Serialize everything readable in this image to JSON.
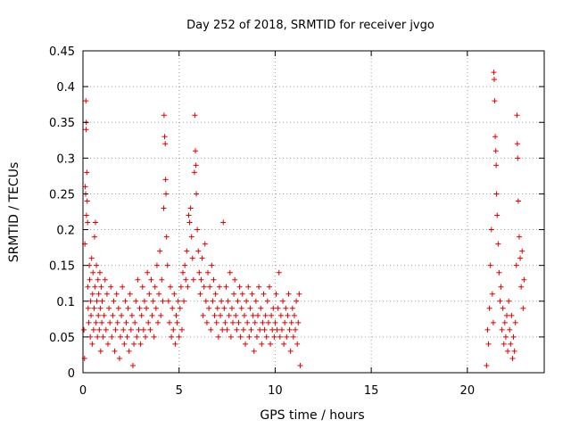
{
  "chart_data": {
    "type": "scatter",
    "title": "Day 252 of 2018, SRMTID for receiver jvgo",
    "xlabel": "GPS time / hours",
    "ylabel": "SRMTID / TECUs",
    "xlim": [
      0,
      24
    ],
    "ylim": [
      0,
      0.45
    ],
    "xticks": [
      0,
      5,
      10,
      15,
      20
    ],
    "yticks": [
      0,
      0.05,
      0.1,
      0.15,
      0.2,
      0.25,
      0.3,
      0.35,
      0.4,
      0.45
    ],
    "ytick_labels": [
      "0",
      "0.05",
      "0.1",
      "0.15",
      "0.2",
      "0.25",
      "0.3",
      "0.35",
      "0.4",
      "0.45"
    ],
    "xtick_labels": [
      "0",
      "5",
      "10",
      "15",
      "20"
    ],
    "grid": true,
    "marker": "+",
    "color": "#e00000",
    "series": [
      {
        "values": [
          [
            0.05,
            0.06
          ],
          [
            0.08,
            0.02
          ],
          [
            0.1,
            0.18
          ],
          [
            0.12,
            0.26
          ],
          [
            0.14,
            0.25
          ],
          [
            0.15,
            0.38
          ],
          [
            0.16,
            0.34
          ],
          [
            0.17,
            0.35
          ],
          [
            0.18,
            0.22
          ],
          [
            0.2,
            0.28
          ],
          [
            0.22,
            0.24
          ],
          [
            0.24,
            0.21
          ],
          [
            0.25,
            0.12
          ],
          [
            0.27,
            0.09
          ],
          [
            0.3,
            0.07
          ],
          [
            0.33,
            0.15
          ],
          [
            0.35,
            0.13
          ],
          [
            0.38,
            0.05
          ],
          [
            0.4,
            0.1
          ],
          [
            0.42,
            0.08
          ],
          [
            0.45,
            0.16
          ],
          [
            0.48,
            0.04
          ],
          [
            0.5,
            0.11
          ],
          [
            0.52,
            0.14
          ],
          [
            0.55,
            0.06
          ],
          [
            0.58,
            0.09
          ],
          [
            0.6,
            0.19
          ],
          [
            0.62,
            0.12
          ],
          [
            0.65,
            0.21
          ],
          [
            0.68,
            0.07
          ],
          [
            0.7,
            0.15
          ],
          [
            0.72,
            0.1
          ],
          [
            0.75,
            0.05
          ],
          [
            0.78,
            0.13
          ],
          [
            0.8,
            0.08
          ],
          [
            0.82,
            0.11
          ],
          [
            0.85,
            0.06
          ],
          [
            0.88,
            0.14
          ],
          [
            0.9,
            0.09
          ],
          [
            0.92,
            0.03
          ],
          [
            0.95,
            0.12
          ],
          [
            0.98,
            0.07
          ],
          [
            1.0,
            0.1
          ],
          [
            1.05,
            0.05
          ],
          [
            1.1,
            0.08
          ],
          [
            1.15,
            0.13
          ],
          [
            1.2,
            0.06
          ],
          [
            1.25,
            0.11
          ],
          [
            1.3,
            0.04
          ],
          [
            1.35,
            0.09
          ],
          [
            1.4,
            0.07
          ],
          [
            1.45,
            0.12
          ],
          [
            1.5,
            0.05
          ],
          [
            1.55,
            0.08
          ],
          [
            1.6,
            0.1
          ],
          [
            1.65,
            0.03
          ],
          [
            1.7,
            0.06
          ],
          [
            1.75,
            0.11
          ],
          [
            1.8,
            0.07
          ],
          [
            1.85,
            0.09
          ],
          [
            1.9,
            0.02
          ],
          [
            1.95,
            0.05
          ],
          [
            2.0,
            0.08
          ],
          [
            2.05,
            0.12
          ],
          [
            2.1,
            0.06
          ],
          [
            2.15,
            0.04
          ],
          [
            2.2,
            0.1
          ],
          [
            2.25,
            0.07
          ],
          [
            2.3,
            0.05
          ],
          [
            2.35,
            0.09
          ],
          [
            2.4,
            0.03
          ],
          [
            2.45,
            0.11
          ],
          [
            2.5,
            0.06
          ],
          [
            2.55,
            0.08
          ],
          [
            2.6,
            0.01
          ],
          [
            2.65,
            0.04
          ],
          [
            2.7,
            0.07
          ],
          [
            2.75,
            0.1
          ],
          [
            2.8,
            0.05
          ],
          [
            2.85,
            0.13
          ],
          [
            2.9,
            0.06
          ],
          [
            2.95,
            0.09
          ],
          [
            3.0,
            0.04
          ],
          [
            3.05,
            0.08
          ],
          [
            3.1,
            0.12
          ],
          [
            3.15,
            0.06
          ],
          [
            3.2,
            0.1
          ],
          [
            3.25,
            0.05
          ],
          [
            3.3,
            0.09
          ],
          [
            3.35,
            0.14
          ],
          [
            3.4,
            0.07
          ],
          [
            3.45,
            0.11
          ],
          [
            3.5,
            0.06
          ],
          [
            3.55,
            0.13
          ],
          [
            3.6,
            0.08
          ],
          [
            3.65,
            0.1
          ],
          [
            3.7,
            0.05
          ],
          [
            3.75,
            0.12
          ],
          [
            3.8,
            0.09
          ],
          [
            3.85,
            0.15
          ],
          [
            3.9,
            0.07
          ],
          [
            3.95,
            0.11
          ],
          [
            4.0,
            0.17
          ],
          [
            4.05,
            0.08
          ],
          [
            4.1,
            0.13
          ],
          [
            4.15,
            0.1
          ],
          [
            4.2,
            0.23
          ],
          [
            4.22,
            0.36
          ],
          [
            4.25,
            0.33
          ],
          [
            4.28,
            0.32
          ],
          [
            4.3,
            0.27
          ],
          [
            4.32,
            0.25
          ],
          [
            4.35,
            0.19
          ],
          [
            4.4,
            0.15
          ],
          [
            4.45,
            0.1
          ],
          [
            4.5,
            0.07
          ],
          [
            4.55,
            0.12
          ],
          [
            4.6,
            0.05
          ],
          [
            4.65,
            0.09
          ],
          [
            4.7,
            0.06
          ],
          [
            4.75,
            0.11
          ],
          [
            4.8,
            0.04
          ],
          [
            4.85,
            0.08
          ],
          [
            4.9,
            0.07
          ],
          [
            4.95,
            0.1
          ],
          [
            5.0,
            0.05
          ],
          [
            5.05,
            0.09
          ],
          [
            5.1,
            0.12
          ],
          [
            5.15,
            0.06
          ],
          [
            5.2,
            0.14
          ],
          [
            5.25,
            0.1
          ],
          [
            5.3,
            0.15
          ],
          [
            5.35,
            0.13
          ],
          [
            5.4,
            0.17
          ],
          [
            5.45,
            0.12
          ],
          [
            5.5,
            0.22
          ],
          [
            5.55,
            0.21
          ],
          [
            5.6,
            0.23
          ],
          [
            5.65,
            0.19
          ],
          [
            5.7,
            0.16
          ],
          [
            5.75,
            0.13
          ],
          [
            5.8,
            0.28
          ],
          [
            5.82,
            0.36
          ],
          [
            5.85,
            0.31
          ],
          [
            5.88,
            0.29
          ],
          [
            5.9,
            0.25
          ],
          [
            5.95,
            0.2
          ],
          [
            6.0,
            0.17
          ],
          [
            6.05,
            0.14
          ],
          [
            6.1,
            0.11
          ],
          [
            6.15,
            0.13
          ],
          [
            6.2,
            0.16
          ],
          [
            6.25,
            0.08
          ],
          [
            6.3,
            0.12
          ],
          [
            6.35,
            0.18
          ],
          [
            6.4,
            0.1
          ],
          [
            6.45,
            0.07
          ],
          [
            6.5,
            0.14
          ],
          [
            6.55,
            0.09
          ],
          [
            6.6,
            0.12
          ],
          [
            6.65,
            0.06
          ],
          [
            6.7,
            0.15
          ],
          [
            6.75,
            0.1
          ],
          [
            6.8,
            0.13
          ],
          [
            6.85,
            0.08
          ],
          [
            6.9,
            0.11
          ],
          [
            6.95,
            0.07
          ],
          [
            7.0,
            0.09
          ],
          [
            7.05,
            0.05
          ],
          [
            7.1,
            0.12
          ],
          [
            7.15,
            0.08
          ],
          [
            7.2,
            0.1
          ],
          [
            7.25,
            0.06
          ],
          [
            7.3,
            0.21
          ],
          [
            7.35,
            0.09
          ],
          [
            7.4,
            0.07
          ],
          [
            7.45,
            0.12
          ],
          [
            7.5,
            0.06
          ],
          [
            7.55,
            0.1
          ],
          [
            7.6,
            0.08
          ],
          [
            7.65,
            0.14
          ],
          [
            7.7,
            0.05
          ],
          [
            7.75,
            0.09
          ],
          [
            7.8,
            0.07
          ],
          [
            7.85,
            0.11
          ],
          [
            7.9,
            0.13
          ],
          [
            7.95,
            0.08
          ],
          [
            8.0,
            0.06
          ],
          [
            8.05,
            0.1
          ],
          [
            8.1,
            0.07
          ],
          [
            8.15,
            0.12
          ],
          [
            8.2,
            0.05
          ],
          [
            8.25,
            0.09
          ],
          [
            8.3,
            0.11
          ],
          [
            8.35,
            0.06
          ],
          [
            8.4,
            0.08
          ],
          [
            8.45,
            0.04
          ],
          [
            8.5,
            0.1
          ],
          [
            8.55,
            0.07
          ],
          [
            8.6,
            0.12
          ],
          [
            8.65,
            0.05
          ],
          [
            8.7,
            0.09
          ],
          [
            8.75,
            0.06
          ],
          [
            8.8,
            0.11
          ],
          [
            8.85,
            0.08
          ],
          [
            8.9,
            0.03
          ],
          [
            8.95,
            0.07
          ],
          [
            9.0,
            0.1
          ],
          [
            9.05,
            0.05
          ],
          [
            9.1,
            0.08
          ],
          [
            9.15,
            0.12
          ],
          [
            9.2,
            0.06
          ],
          [
            9.25,
            0.09
          ],
          [
            9.3,
            0.04
          ],
          [
            9.35,
            0.07
          ],
          [
            9.4,
            0.11
          ],
          [
            9.45,
            0.06
          ],
          [
            9.5,
            0.08
          ],
          [
            9.55,
            0.05
          ],
          [
            9.6,
            0.1
          ],
          [
            9.65,
            0.07
          ],
          [
            9.7,
            0.12
          ],
          [
            9.75,
            0.04
          ],
          [
            9.8,
            0.08
          ],
          [
            9.85,
            0.06
          ],
          [
            9.9,
            0.09
          ],
          [
            9.95,
            0.05
          ],
          [
            10.0,
            0.07
          ],
          [
            10.05,
            0.11
          ],
          [
            10.1,
            0.06
          ],
          [
            10.15,
            0.09
          ],
          [
            10.2,
            0.14
          ],
          [
            10.25,
            0.05
          ],
          [
            10.3,
            0.08
          ],
          [
            10.35,
            0.06
          ],
          [
            10.4,
            0.1
          ],
          [
            10.45,
            0.04
          ],
          [
            10.5,
            0.07
          ],
          [
            10.55,
            0.09
          ],
          [
            10.6,
            0.05
          ],
          [
            10.65,
            0.08
          ],
          [
            10.7,
            0.11
          ],
          [
            10.75,
            0.06
          ],
          [
            10.8,
            0.03
          ],
          [
            10.85,
            0.07
          ],
          [
            10.9,
            0.09
          ],
          [
            10.95,
            0.05
          ],
          [
            11.0,
            0.08
          ],
          [
            11.05,
            0.06
          ],
          [
            11.1,
            0.1
          ],
          [
            11.15,
            0.04
          ],
          [
            11.2,
            0.07
          ],
          [
            11.25,
            0.11
          ],
          [
            11.3,
            0.01
          ],
          [
            21.0,
            0.01
          ],
          [
            21.05,
            0.06
          ],
          [
            21.1,
            0.04
          ],
          [
            21.15,
            0.09
          ],
          [
            21.2,
            0.15
          ],
          [
            21.25,
            0.2
          ],
          [
            21.3,
            0.11
          ],
          [
            21.35,
            0.07
          ],
          [
            21.38,
            0.42
          ],
          [
            21.4,
            0.41
          ],
          [
            21.42,
            0.38
          ],
          [
            21.45,
            0.33
          ],
          [
            21.48,
            0.31
          ],
          [
            21.5,
            0.29
          ],
          [
            21.52,
            0.25
          ],
          [
            21.55,
            0.22
          ],
          [
            21.6,
            0.18
          ],
          [
            21.65,
            0.14
          ],
          [
            21.7,
            0.1
          ],
          [
            21.75,
            0.12
          ],
          [
            21.8,
            0.06
          ],
          [
            21.85,
            0.09
          ],
          [
            21.9,
            0.04
          ],
          [
            21.95,
            0.07
          ],
          [
            22.0,
            0.05
          ],
          [
            22.05,
            0.08
          ],
          [
            22.1,
            0.03
          ],
          [
            22.15,
            0.1
          ],
          [
            22.2,
            0.06
          ],
          [
            22.25,
            0.04
          ],
          [
            22.3,
            0.08
          ],
          [
            22.35,
            0.02
          ],
          [
            22.4,
            0.05
          ],
          [
            22.45,
            0.03
          ],
          [
            22.5,
            0.07
          ],
          [
            22.55,
            0.15
          ],
          [
            22.58,
            0.36
          ],
          [
            22.6,
            0.32
          ],
          [
            22.62,
            0.3
          ],
          [
            22.65,
            0.24
          ],
          [
            22.7,
            0.19
          ],
          [
            22.75,
            0.16
          ],
          [
            22.8,
            0.12
          ],
          [
            22.85,
            0.17
          ],
          [
            22.9,
            0.09
          ],
          [
            22.95,
            0.13
          ]
        ]
      }
    ]
  }
}
